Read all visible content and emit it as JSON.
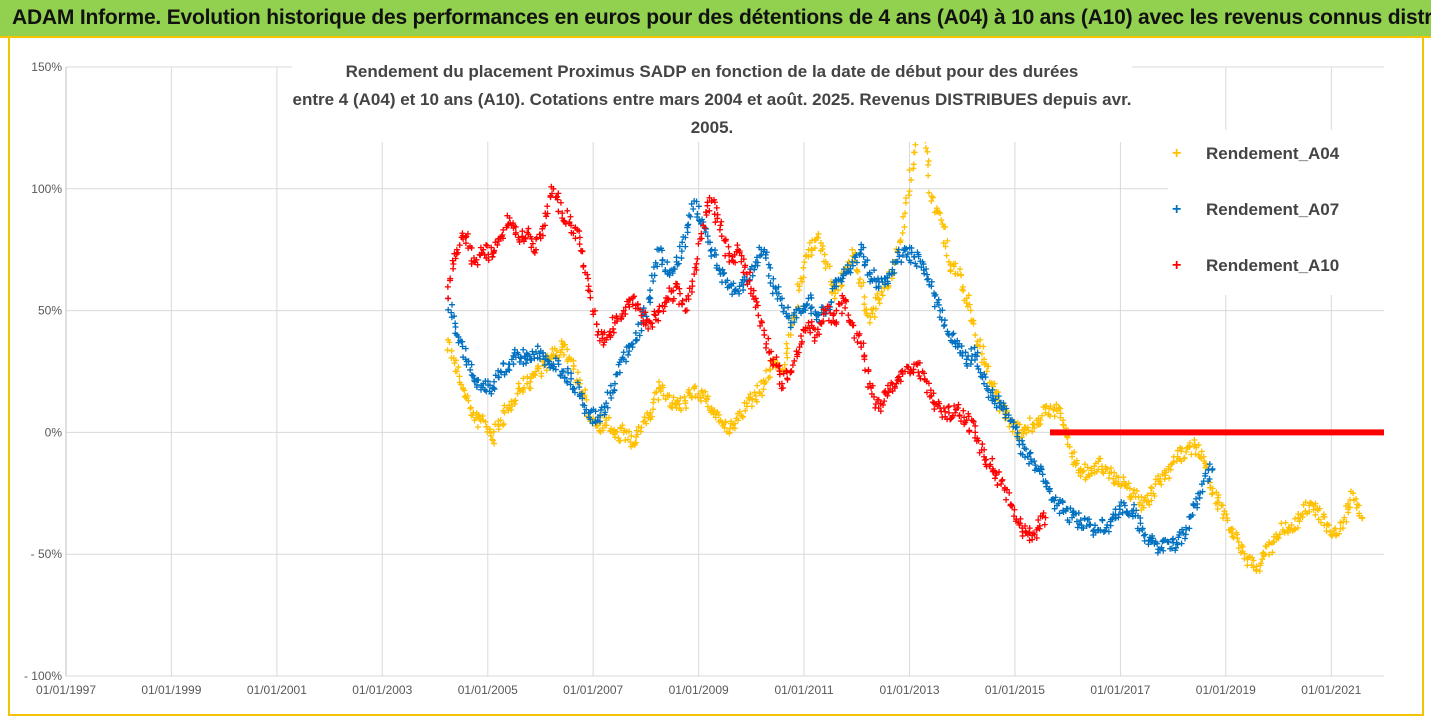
{
  "header": {
    "title": "ADAM Informe. Evolution historique des performances en euros pour des détentions de 4 ans (A04) à 10 ans (A10) avec les revenus connus distribués"
  },
  "chart_data": {
    "type": "scatter",
    "title_line1": "Rendement du placement Proximus SADP en fonction de la date de début pour des durées",
    "title_line2": "entre 4 (A04) et 10 ans (A10). Cotations entre mars 2004 et août. 2025. Revenus DISTRIBUES depuis avr. 2005.",
    "xlabel": "",
    "ylabel": "",
    "x_range": [
      "1997-01-01",
      "2022-01-01"
    ],
    "x_ticks": [
      "01/01/1997",
      "01/01/1999",
      "01/01/2001",
      "01/01/2003",
      "01/01/2005",
      "01/01/2007",
      "01/01/2009",
      "01/01/2011",
      "01/01/2013",
      "01/01/2015",
      "01/01/2017",
      "01/01/2019",
      "01/01/2021"
    ],
    "ylim": [
      -100,
      150
    ],
    "y_ticks": [
      150,
      100,
      50,
      0,
      -50,
      -100
    ],
    "y_tick_labels": [
      "150%",
      "100%",
      "50%",
      "0%",
      "- 50%",
      "- 100%"
    ],
    "grid": "vertical and horizontal",
    "legend_position": "right",
    "series": [
      {
        "name": "Rendement_A04",
        "color": "#ffc000",
        "marker": "+",
        "points": [
          [
            "2004-04-01",
            38
          ],
          [
            "2004-06-01",
            25
          ],
          [
            "2004-08-01",
            15
          ],
          [
            "2004-10-01",
            5
          ],
          [
            "2004-12-01",
            5
          ],
          [
            "2005-02-01",
            -3
          ],
          [
            "2005-04-01",
            5
          ],
          [
            "2005-06-01",
            10
          ],
          [
            "2005-08-01",
            18
          ],
          [
            "2005-10-01",
            20
          ],
          [
            "2005-12-01",
            25
          ],
          [
            "2006-02-01",
            28
          ],
          [
            "2006-04-01",
            32
          ],
          [
            "2006-06-01",
            35
          ],
          [
            "2006-08-01",
            30
          ],
          [
            "2006-10-01",
            20
          ],
          [
            "2006-12-01",
            8
          ],
          [
            "2007-02-01",
            3
          ],
          [
            "2007-04-01",
            5
          ],
          [
            "2007-06-01",
            -2
          ],
          [
            "2007-08-01",
            0
          ],
          [
            "2007-10-01",
            -5
          ],
          [
            "2007-12-01",
            2
          ],
          [
            "2008-02-01",
            8
          ],
          [
            "2008-04-01",
            18
          ],
          [
            "2008-06-01",
            15
          ],
          [
            "2008-08-01",
            10
          ],
          [
            "2008-10-01",
            12
          ],
          [
            "2008-12-01",
            18
          ],
          [
            "2009-02-01",
            15
          ],
          [
            "2009-04-01",
            10
          ],
          [
            "2009-06-01",
            5
          ],
          [
            "2009-08-01",
            0
          ],
          [
            "2009-10-01",
            5
          ],
          [
            "2009-12-01",
            12
          ],
          [
            "2010-02-01",
            15
          ],
          [
            "2010-04-01",
            20
          ],
          [
            "2010-06-01",
            30
          ],
          [
            "2010-08-01",
            25
          ],
          [
            "2010-10-01",
            40
          ],
          [
            "2010-12-01",
            60
          ],
          [
            "2011-02-01",
            75
          ],
          [
            "2011-04-01",
            80
          ],
          [
            "2011-06-01",
            70
          ],
          [
            "2011-08-01",
            55
          ],
          [
            "2011-10-01",
            65
          ],
          [
            "2011-12-01",
            75
          ],
          [
            "2012-02-01",
            60
          ],
          [
            "2012-04-01",
            45
          ],
          [
            "2012-06-01",
            55
          ],
          [
            "2012-08-01",
            60
          ],
          [
            "2012-10-01",
            70
          ],
          [
            "2012-12-01",
            90
          ],
          [
            "2013-02-01",
            115
          ],
          [
            "2013-04-01",
            130
          ],
          [
            "2013-06-01",
            95
          ],
          [
            "2013-08-01",
            90
          ],
          [
            "2013-10-01",
            70
          ],
          [
            "2013-12-01",
            65
          ],
          [
            "2014-02-01",
            55
          ],
          [
            "2014-04-01",
            40
          ],
          [
            "2014-06-01",
            30
          ],
          [
            "2014-08-01",
            20
          ],
          [
            "2014-10-01",
            10
          ],
          [
            "2014-12-01",
            5
          ],
          [
            "2015-02-01",
            0
          ],
          [
            "2015-04-01",
            2
          ],
          [
            "2015-06-01",
            5
          ],
          [
            "2015-08-01",
            8
          ],
          [
            "2015-10-01",
            10
          ],
          [
            "2015-12-01",
            5
          ],
          [
            "2016-02-01",
            -10
          ],
          [
            "2016-04-01",
            -15
          ],
          [
            "2016-06-01",
            -18
          ],
          [
            "2016-08-01",
            -12
          ],
          [
            "2016-10-01",
            -15
          ],
          [
            "2016-12-01",
            -20
          ],
          [
            "2017-02-01",
            -22
          ],
          [
            "2017-04-01",
            -25
          ],
          [
            "2017-06-01",
            -30
          ],
          [
            "2017-08-01",
            -25
          ],
          [
            "2017-10-01",
            -20
          ],
          [
            "2017-12-01",
            -15
          ],
          [
            "2018-02-01",
            -10
          ],
          [
            "2018-04-01",
            -8
          ],
          [
            "2018-06-01",
            -5
          ],
          [
            "2018-08-01",
            -10
          ],
          [
            "2018-10-01",
            -25
          ],
          [
            "2018-12-01",
            -30
          ],
          [
            "2019-02-01",
            -40
          ],
          [
            "2019-04-01",
            -45
          ],
          [
            "2019-06-01",
            -52
          ],
          [
            "2019-08-01",
            -55
          ],
          [
            "2019-10-01",
            -50
          ],
          [
            "2019-12-01",
            -45
          ],
          [
            "2020-02-01",
            -40
          ],
          [
            "2020-04-01",
            -38
          ],
          [
            "2020-06-01",
            -35
          ],
          [
            "2020-08-01",
            -30
          ],
          [
            "2020-10-01",
            -32
          ],
          [
            "2020-12-01",
            -38
          ],
          [
            "2021-02-01",
            -42
          ],
          [
            "2021-04-01",
            -35
          ],
          [
            "2021-06-01",
            -25
          ],
          [
            "2021-08-01",
            -35
          ]
        ]
      },
      {
        "name": "Rendement_A07",
        "color": "#0070c0",
        "marker": "+",
        "points": [
          [
            "2004-04-01",
            55
          ],
          [
            "2004-06-01",
            40
          ],
          [
            "2004-08-01",
            30
          ],
          [
            "2004-10-01",
            22
          ],
          [
            "2004-12-01",
            20
          ],
          [
            "2005-02-01",
            18
          ],
          [
            "2005-04-01",
            25
          ],
          [
            "2005-06-01",
            28
          ],
          [
            "2005-08-01",
            32
          ],
          [
            "2005-10-01",
            30
          ],
          [
            "2005-12-01",
            33
          ],
          [
            "2006-02-01",
            30
          ],
          [
            "2006-04-01",
            28
          ],
          [
            "2006-06-01",
            25
          ],
          [
            "2006-08-01",
            22
          ],
          [
            "2006-10-01",
            15
          ],
          [
            "2006-12-01",
            8
          ],
          [
            "2007-02-01",
            5
          ],
          [
            "2007-04-01",
            12
          ],
          [
            "2007-06-01",
            20
          ],
          [
            "2007-08-01",
            30
          ],
          [
            "2007-10-01",
            35
          ],
          [
            "2007-12-01",
            45
          ],
          [
            "2008-02-01",
            55
          ],
          [
            "2008-04-01",
            75
          ],
          [
            "2008-06-01",
            65
          ],
          [
            "2008-08-01",
            70
          ],
          [
            "2008-10-01",
            80
          ],
          [
            "2008-12-01",
            95
          ],
          [
            "2009-02-01",
            85
          ],
          [
            "2009-04-01",
            75
          ],
          [
            "2009-06-01",
            65
          ],
          [
            "2009-08-01",
            60
          ],
          [
            "2009-10-01",
            58
          ],
          [
            "2009-12-01",
            62
          ],
          [
            "2010-02-01",
            70
          ],
          [
            "2010-04-01",
            75
          ],
          [
            "2010-06-01",
            60
          ],
          [
            "2010-08-01",
            55
          ],
          [
            "2010-10-01",
            45
          ],
          [
            "2010-12-01",
            50
          ],
          [
            "2011-02-01",
            55
          ],
          [
            "2011-04-01",
            48
          ],
          [
            "2011-06-01",
            50
          ],
          [
            "2011-08-01",
            60
          ],
          [
            "2011-10-01",
            65
          ],
          [
            "2011-12-01",
            70
          ],
          [
            "2012-02-01",
            75
          ],
          [
            "2012-04-01",
            65
          ],
          [
            "2012-06-01",
            60
          ],
          [
            "2012-08-01",
            62
          ],
          [
            "2012-10-01",
            70
          ],
          [
            "2012-12-01",
            75
          ],
          [
            "2013-02-01",
            72
          ],
          [
            "2013-04-01",
            70
          ],
          [
            "2013-06-01",
            60
          ],
          [
            "2013-08-01",
            50
          ],
          [
            "2013-10-01",
            40
          ],
          [
            "2013-12-01",
            35
          ],
          [
            "2014-02-01",
            30
          ],
          [
            "2014-04-01",
            32
          ],
          [
            "2014-06-01",
            20
          ],
          [
            "2014-08-01",
            15
          ],
          [
            "2014-10-01",
            10
          ],
          [
            "2014-12-01",
            5
          ],
          [
            "2015-02-01",
            -5
          ],
          [
            "2015-04-01",
            -10
          ],
          [
            "2015-06-01",
            -15
          ],
          [
            "2015-08-01",
            -20
          ],
          [
            "2015-10-01",
            -28
          ],
          [
            "2015-12-01",
            -32
          ],
          [
            "2016-02-01",
            -35
          ],
          [
            "2016-04-01",
            -36
          ],
          [
            "2016-06-01",
            -38
          ],
          [
            "2016-08-01",
            -40
          ],
          [
            "2016-10-01",
            -38
          ],
          [
            "2016-12-01",
            -35
          ],
          [
            "2017-02-01",
            -30
          ],
          [
            "2017-04-01",
            -32
          ],
          [
            "2017-06-01",
            -40
          ],
          [
            "2017-08-01",
            -45
          ],
          [
            "2017-10-01",
            -48
          ],
          [
            "2017-12-01",
            -45
          ],
          [
            "2018-02-01",
            -46
          ],
          [
            "2018-04-01",
            -40
          ],
          [
            "2018-06-01",
            -30
          ],
          [
            "2018-08-01",
            -20
          ],
          [
            "2018-10-01",
            -15
          ]
        ]
      },
      {
        "name": "Rendement_A10",
        "color": "#ff0000",
        "marker": "+",
        "points": [
          [
            "2004-04-01",
            55
          ],
          [
            "2004-06-01",
            75
          ],
          [
            "2004-08-01",
            80
          ],
          [
            "2004-10-01",
            70
          ],
          [
            "2004-12-01",
            75
          ],
          [
            "2005-02-01",
            72
          ],
          [
            "2005-04-01",
            80
          ],
          [
            "2005-06-01",
            88
          ],
          [
            "2005-08-01",
            80
          ],
          [
            "2005-10-01",
            82
          ],
          [
            "2005-12-01",
            75
          ],
          [
            "2006-02-01",
            85
          ],
          [
            "2006-04-01",
            100
          ],
          [
            "2006-06-01",
            90
          ],
          [
            "2006-08-01",
            85
          ],
          [
            "2006-10-01",
            80
          ],
          [
            "2006-12-01",
            60
          ],
          [
            "2007-02-01",
            40
          ],
          [
            "2007-04-01",
            38
          ],
          [
            "2007-06-01",
            45
          ],
          [
            "2007-08-01",
            50
          ],
          [
            "2007-10-01",
            55
          ],
          [
            "2007-12-01",
            48
          ],
          [
            "2008-02-01",
            45
          ],
          [
            "2008-04-01",
            50
          ],
          [
            "2008-06-01",
            55
          ],
          [
            "2008-08-01",
            60
          ],
          [
            "2008-10-01",
            50
          ],
          [
            "2008-12-01",
            65
          ],
          [
            "2009-02-01",
            85
          ],
          [
            "2009-04-01",
            95
          ],
          [
            "2009-06-01",
            85
          ],
          [
            "2009-08-01",
            70
          ],
          [
            "2009-10-01",
            75
          ],
          [
            "2009-12-01",
            65
          ],
          [
            "2010-02-01",
            55
          ],
          [
            "2010-04-01",
            40
          ],
          [
            "2010-06-01",
            30
          ],
          [
            "2010-08-01",
            20
          ],
          [
            "2010-10-01",
            25
          ],
          [
            "2010-12-01",
            35
          ],
          [
            "2011-02-01",
            45
          ],
          [
            "2011-04-01",
            40
          ],
          [
            "2011-06-01",
            50
          ],
          [
            "2011-08-01",
            45
          ],
          [
            "2011-10-01",
            55
          ],
          [
            "2011-12-01",
            45
          ],
          [
            "2012-02-01",
            35
          ],
          [
            "2012-04-01",
            20
          ],
          [
            "2012-06-01",
            10
          ],
          [
            "2012-08-01",
            15
          ],
          [
            "2012-10-01",
            20
          ],
          [
            "2012-12-01",
            25
          ],
          [
            "2013-02-01",
            28
          ],
          [
            "2013-04-01",
            25
          ],
          [
            "2013-06-01",
            15
          ],
          [
            "2013-08-01",
            10
          ],
          [
            "2013-10-01",
            8
          ],
          [
            "2013-12-01",
            10
          ],
          [
            "2014-02-01",
            5
          ],
          [
            "2014-04-01",
            0
          ],
          [
            "2014-06-01",
            -10
          ],
          [
            "2014-08-01",
            -15
          ],
          [
            "2014-10-01",
            -20
          ],
          [
            "2014-12-01",
            -30
          ],
          [
            "2015-02-01",
            -38
          ],
          [
            "2015-04-01",
            -42
          ],
          [
            "2015-06-01",
            -40
          ],
          [
            "2015-08-01",
            -35
          ]
        ],
        "flat_segment": {
          "from": "2015-09-01",
          "to": "2022-01-01",
          "value": 0
        }
      }
    ]
  }
}
